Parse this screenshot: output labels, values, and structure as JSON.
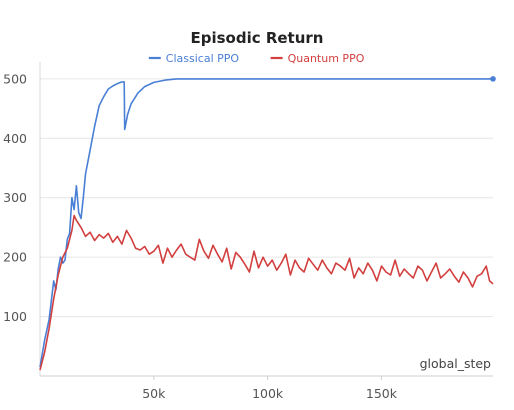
{
  "chart_data": {
    "type": "line",
    "title": "Episodic Return",
    "xlabel": "global_step",
    "ylabel": "",
    "xlim": [
      0,
      199000
    ],
    "ylim": [
      0,
      520
    ],
    "x_ticks": [
      50000,
      100000,
      150000
    ],
    "x_tick_labels": [
      "50k",
      "100k",
      "150k"
    ],
    "y_ticks": [
      100,
      200,
      300,
      400,
      500
    ],
    "y_tick_labels": [
      "100",
      "200",
      "300",
      "400",
      "500"
    ],
    "grid": "horizontal",
    "legend_position": "top-center",
    "series": [
      {
        "name": "Classical PPO",
        "color": "#4a7fd6",
        "end_marker": true,
        "points": [
          [
            0,
            15
          ],
          [
            2000,
            60
          ],
          [
            4000,
            95
          ],
          [
            6000,
            160
          ],
          [
            7000,
            145
          ],
          [
            8000,
            180
          ],
          [
            9000,
            200
          ],
          [
            10000,
            190
          ],
          [
            11000,
            195
          ],
          [
            12000,
            230
          ],
          [
            13000,
            240
          ],
          [
            14000,
            300
          ],
          [
            15000,
            280
          ],
          [
            16000,
            320
          ],
          [
            17000,
            275
          ],
          [
            18000,
            265
          ],
          [
            19000,
            300
          ],
          [
            20000,
            340
          ],
          [
            22000,
            380
          ],
          [
            24000,
            420
          ],
          [
            26000,
            455
          ],
          [
            28000,
            470
          ],
          [
            30000,
            483
          ],
          [
            32000,
            488
          ],
          [
            34000,
            492
          ],
          [
            36000,
            495
          ],
          [
            37000,
            495
          ],
          [
            37200,
            415
          ],
          [
            38500,
            440
          ],
          [
            40000,
            458
          ],
          [
            43000,
            476
          ],
          [
            46000,
            487
          ],
          [
            50000,
            494
          ],
          [
            55000,
            498
          ],
          [
            60000,
            500
          ],
          [
            100000,
            500
          ],
          [
            150000,
            500
          ],
          [
            199000,
            500
          ]
        ]
      },
      {
        "name": "Quantum PPO",
        "color": "#d23f3f",
        "end_marker": false,
        "points": [
          [
            0,
            10
          ],
          [
            2000,
            40
          ],
          [
            4000,
            80
          ],
          [
            6000,
            130
          ],
          [
            8000,
            170
          ],
          [
            10000,
            200
          ],
          [
            12000,
            215
          ],
          [
            14000,
            245
          ],
          [
            15000,
            270
          ],
          [
            16000,
            262
          ],
          [
            18000,
            250
          ],
          [
            20000,
            235
          ],
          [
            22000,
            242
          ],
          [
            24000,
            228
          ],
          [
            26000,
            238
          ],
          [
            28000,
            232
          ],
          [
            30000,
            240
          ],
          [
            32000,
            225
          ],
          [
            34000,
            235
          ],
          [
            36000,
            222
          ],
          [
            38000,
            245
          ],
          [
            40000,
            232
          ],
          [
            42000,
            215
          ],
          [
            44000,
            212
          ],
          [
            46000,
            218
          ],
          [
            48000,
            205
          ],
          [
            50000,
            210
          ],
          [
            52000,
            220
          ],
          [
            54000,
            190
          ],
          [
            56000,
            215
          ],
          [
            58000,
            200
          ],
          [
            60000,
            212
          ],
          [
            62000,
            222
          ],
          [
            64000,
            205
          ],
          [
            66000,
            200
          ],
          [
            68000,
            195
          ],
          [
            70000,
            230
          ],
          [
            72000,
            210
          ],
          [
            74000,
            198
          ],
          [
            76000,
            220
          ],
          [
            78000,
            205
          ],
          [
            80000,
            192
          ],
          [
            82000,
            215
          ],
          [
            84000,
            180
          ],
          [
            86000,
            208
          ],
          [
            88000,
            200
          ],
          [
            90000,
            188
          ],
          [
            92000,
            175
          ],
          [
            94000,
            210
          ],
          [
            96000,
            182
          ],
          [
            98000,
            200
          ],
          [
            100000,
            185
          ],
          [
            102000,
            195
          ],
          [
            104000,
            178
          ],
          [
            106000,
            190
          ],
          [
            108000,
            205
          ],
          [
            110000,
            170
          ],
          [
            112000,
            195
          ],
          [
            114000,
            182
          ],
          [
            116000,
            175
          ],
          [
            118000,
            198
          ],
          [
            120000,
            188
          ],
          [
            122000,
            178
          ],
          [
            124000,
            195
          ],
          [
            126000,
            182
          ],
          [
            128000,
            172
          ],
          [
            130000,
            190
          ],
          [
            132000,
            185
          ],
          [
            134000,
            178
          ],
          [
            136000,
            198
          ],
          [
            138000,
            165
          ],
          [
            140000,
            182
          ],
          [
            142000,
            172
          ],
          [
            144000,
            190
          ],
          [
            146000,
            178
          ],
          [
            148000,
            160
          ],
          [
            150000,
            185
          ],
          [
            152000,
            175
          ],
          [
            154000,
            170
          ],
          [
            156000,
            195
          ],
          [
            158000,
            168
          ],
          [
            160000,
            180
          ],
          [
            162000,
            172
          ],
          [
            164000,
            165
          ],
          [
            166000,
            185
          ],
          [
            168000,
            178
          ],
          [
            170000,
            160
          ],
          [
            172000,
            175
          ],
          [
            174000,
            190
          ],
          [
            176000,
            165
          ],
          [
            178000,
            172
          ],
          [
            180000,
            180
          ],
          [
            182000,
            168
          ],
          [
            184000,
            158
          ],
          [
            186000,
            175
          ],
          [
            188000,
            165
          ],
          [
            190000,
            150
          ],
          [
            192000,
            168
          ],
          [
            194000,
            172
          ],
          [
            196000,
            185
          ],
          [
            197500,
            160
          ],
          [
            199000,
            155
          ]
        ]
      }
    ]
  }
}
